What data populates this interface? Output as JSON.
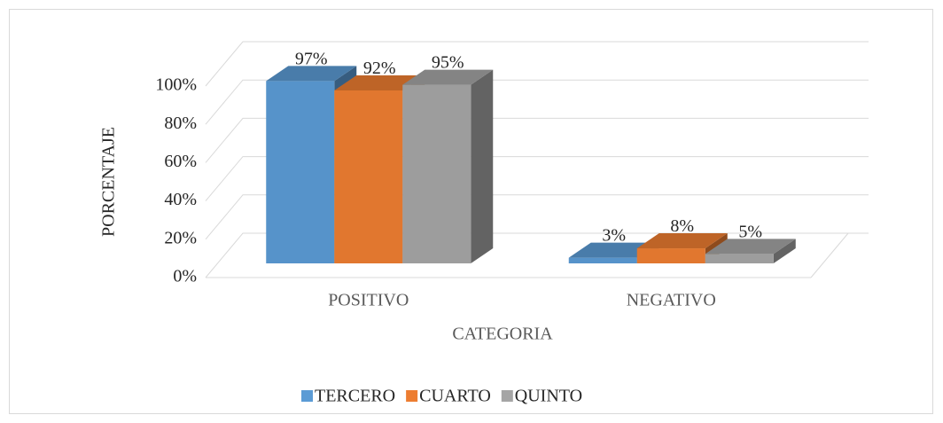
{
  "chart_data": {
    "type": "bar3d",
    "x_label": "CATEGORIA",
    "y_label": "PORCENTAJE",
    "categories": [
      "POSITIVO",
      "NEGATIVO"
    ],
    "series": [
      {
        "name": "TERCERO",
        "color": "#5b9bd5",
        "values": [
          97,
          3
        ],
        "value_labels": [
          "97%",
          "3%"
        ]
      },
      {
        "name": "CUARTO",
        "color": "#ed7d31",
        "values": [
          92,
          8
        ],
        "value_labels": [
          "92%",
          "8%"
        ]
      },
      {
        "name": "QUINTO",
        "color": "#a5a5a5",
        "values": [
          95,
          5
        ],
        "value_labels": [
          "95%",
          "5%"
        ]
      }
    ],
    "ylim": [
      0,
      100
    ],
    "yticks": [
      {
        "value": 0,
        "label": "0%"
      },
      {
        "value": 20,
        "label": "20%"
      },
      {
        "value": 40,
        "label": "40%"
      },
      {
        "value": 60,
        "label": "60%"
      },
      {
        "value": 80,
        "label": "80%"
      },
      {
        "value": 100,
        "label": "100%"
      }
    ],
    "grid": true,
    "legend": "bottom"
  }
}
